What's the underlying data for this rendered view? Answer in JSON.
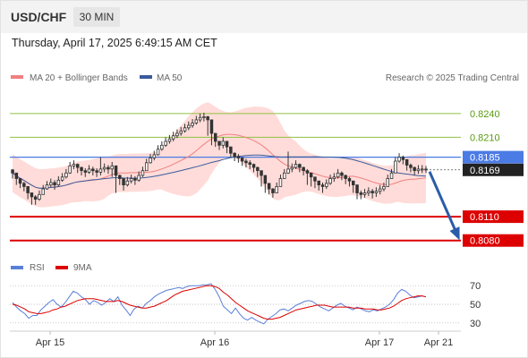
{
  "header": {
    "symbol": "USD/CHF",
    "timeframe": "30 MIN"
  },
  "datetime": "Thursday, April 17, 2025 6:49:15 AM CET",
  "legend": {
    "ma20": "MA 20 + Bollinger Bands",
    "ma50": "MA 50",
    "copyright": "Research © 2025 Trading Central"
  },
  "rsi_legend": {
    "rsi": "RSI",
    "ma9": "9MA"
  },
  "colors": {
    "up_candle": "#ffffff",
    "down_candle": "#333333",
    "ma20": "#f08080",
    "ma50": "#3a5a9c",
    "band": "#ffd0cc",
    "resistance": "#90c040",
    "pivot": "#4b7be5",
    "support": "#dd0000",
    "forecast": "#2a5caa",
    "rsi": "#5a7fd8",
    "rsi_ma": "#dd0000"
  },
  "chart_data": [
    {
      "type": "candlestick",
      "x_tick_labels": [
        "Apr 15",
        "Apr 16",
        "Apr 17",
        "Apr 21"
      ],
      "ylim": [
        0.8065,
        0.8268
      ],
      "levels": [
        {
          "label": "0.8240",
          "value": 0.824,
          "kind": "resistance"
        },
        {
          "label": "0.8210",
          "value": 0.821,
          "kind": "resistance"
        },
        {
          "label": "0.8185",
          "value": 0.8185,
          "kind": "pivot"
        },
        {
          "label": "0.8110",
          "value": 0.811,
          "kind": "support"
        },
        {
          "label": "0.8080",
          "value": 0.808,
          "kind": "support"
        }
      ],
      "last_price": {
        "label": "0.8169",
        "value": 0.8169
      },
      "forecast": {
        "from": 0.8169,
        "to": 0.808
      },
      "close": [
        0.8165,
        0.8158,
        0.8152,
        0.8148,
        0.814,
        0.8135,
        0.8132,
        0.8138,
        0.8145,
        0.815,
        0.8153,
        0.815,
        0.8156,
        0.816,
        0.8165,
        0.8174,
        0.8176,
        0.8172,
        0.8168,
        0.8166,
        0.817,
        0.8168,
        0.8166,
        0.817,
        0.8172,
        0.817,
        0.8174,
        0.8162,
        0.8158,
        0.815,
        0.8155,
        0.8158,
        0.8156,
        0.8162,
        0.8168,
        0.8178,
        0.8184,
        0.8188,
        0.8195,
        0.82,
        0.8205,
        0.8208,
        0.8212,
        0.8215,
        0.8218,
        0.8222,
        0.8225,
        0.8228,
        0.8232,
        0.8235,
        0.8236,
        0.8232,
        0.8215,
        0.8205,
        0.82,
        0.8205,
        0.8198,
        0.819,
        0.8186,
        0.8184,
        0.818,
        0.8178,
        0.8176,
        0.8172,
        0.8168,
        0.8162,
        0.8152,
        0.8145,
        0.814,
        0.8148,
        0.8158,
        0.8165,
        0.817,
        0.8172,
        0.8176,
        0.8172,
        0.8168,
        0.8165,
        0.816,
        0.8155,
        0.815,
        0.8148,
        0.8152,
        0.8158,
        0.816,
        0.8165,
        0.8162,
        0.8158,
        0.8155,
        0.815,
        0.814,
        0.8138,
        0.814,
        0.8142,
        0.814,
        0.8142,
        0.8145,
        0.8148,
        0.8158,
        0.8165,
        0.818,
        0.8185,
        0.8182,
        0.8175,
        0.8172,
        0.8168,
        0.817,
        0.817,
        0.8169
      ],
      "high": [
        0.817,
        0.8163,
        0.8157,
        0.8154,
        0.8146,
        0.814,
        0.8137,
        0.8143,
        0.815,
        0.8155,
        0.8158,
        0.8156,
        0.8161,
        0.8165,
        0.817,
        0.8179,
        0.8181,
        0.8177,
        0.8173,
        0.8171,
        0.8175,
        0.8173,
        0.8171,
        0.8185,
        0.8177,
        0.8175,
        0.8179,
        0.8174,
        0.8163,
        0.8155,
        0.816,
        0.8163,
        0.8161,
        0.8167,
        0.8173,
        0.8183,
        0.8189,
        0.8193,
        0.82,
        0.8205,
        0.821,
        0.8213,
        0.8217,
        0.822,
        0.8223,
        0.8227,
        0.823,
        0.8233,
        0.8237,
        0.824,
        0.8241,
        0.8237,
        0.8232,
        0.8215,
        0.8205,
        0.821,
        0.8205,
        0.8198,
        0.8191,
        0.8189,
        0.8185,
        0.8183,
        0.8181,
        0.8177,
        0.8173,
        0.8168,
        0.8162,
        0.815,
        0.8146,
        0.8153,
        0.8163,
        0.817,
        0.8192,
        0.8177,
        0.8181,
        0.8177,
        0.8173,
        0.817,
        0.8165,
        0.816,
        0.8155,
        0.8153,
        0.8157,
        0.8163,
        0.8165,
        0.817,
        0.8167,
        0.8163,
        0.816,
        0.8155,
        0.815,
        0.8143,
        0.8145,
        0.8147,
        0.8145,
        0.8147,
        0.815,
        0.8153,
        0.8163,
        0.817,
        0.8185,
        0.819,
        0.8187,
        0.8182,
        0.8177,
        0.8173,
        0.8175,
        0.8175,
        0.8174
      ],
      "low": [
        0.8158,
        0.815,
        0.8146,
        0.8142,
        0.8132,
        0.8125,
        0.8125,
        0.813,
        0.8138,
        0.8144,
        0.8147,
        0.8144,
        0.8148,
        0.8154,
        0.8158,
        0.8164,
        0.817,
        0.8165,
        0.8162,
        0.816,
        0.8164,
        0.8162,
        0.816,
        0.8162,
        0.8166,
        0.8164,
        0.816,
        0.814,
        0.815,
        0.8143,
        0.8148,
        0.8152,
        0.815,
        0.8154,
        0.816,
        0.817,
        0.8177,
        0.8181,
        0.8187,
        0.8193,
        0.8198,
        0.8202,
        0.8205,
        0.8209,
        0.8212,
        0.8216,
        0.8219,
        0.8222,
        0.8226,
        0.8229,
        0.823,
        0.8212,
        0.82,
        0.8198,
        0.8194,
        0.8196,
        0.819,
        0.8184,
        0.818,
        0.8178,
        0.8174,
        0.8172,
        0.817,
        0.8166,
        0.816,
        0.8148,
        0.814,
        0.8138,
        0.8134,
        0.814,
        0.815,
        0.8158,
        0.8164,
        0.8166,
        0.817,
        0.8166,
        0.8162,
        0.815,
        0.8148,
        0.8146,
        0.8143,
        0.814,
        0.8145,
        0.815,
        0.8154,
        0.8158,
        0.8156,
        0.8151,
        0.8148,
        0.814,
        0.8132,
        0.8132,
        0.8134,
        0.8136,
        0.8133,
        0.8135,
        0.8138,
        0.8142,
        0.815,
        0.8158,
        0.817,
        0.8178,
        0.8176,
        0.8168,
        0.8166,
        0.8162,
        0.8164,
        0.8165,
        0.8165
      ]
    },
    {
      "type": "line",
      "title": "RSI",
      "ylim": [
        25,
        75
      ],
      "y_ticks": [
        70,
        50,
        30
      ],
      "series": [
        {
          "name": "RSI",
          "values": [
            52,
            47,
            43,
            40,
            35,
            38,
            38,
            44,
            48,
            52,
            55,
            50,
            47,
            52,
            58,
            64,
            62,
            58,
            55,
            50,
            54,
            52,
            49,
            52,
            56,
            53,
            58,
            49,
            44,
            38,
            45,
            48,
            46,
            51,
            54,
            58,
            61,
            63,
            65,
            66,
            67,
            68,
            67,
            69,
            70,
            70,
            70,
            71,
            71,
            72,
            66,
            58,
            48,
            44,
            40,
            46,
            40,
            35,
            33,
            36,
            33,
            31,
            29,
            34,
            37,
            40,
            44,
            45,
            43,
            46,
            49,
            51,
            53,
            54,
            53,
            50,
            47,
            45,
            43,
            46,
            49,
            51,
            48,
            46,
            44,
            47,
            45,
            43,
            42,
            44,
            43,
            45,
            47,
            50,
            55,
            62,
            66,
            64,
            60,
            57,
            58,
            59,
            58
          ]
        },
        {
          "name": "9MA",
          "values": [
            50,
            49,
            47,
            45,
            42,
            41,
            40,
            40,
            41,
            42,
            44,
            45,
            47,
            48,
            50,
            52,
            54,
            55,
            56,
            56,
            56,
            55,
            54,
            53,
            53,
            53,
            54,
            53,
            51,
            49,
            48,
            47,
            46,
            46,
            47,
            48,
            50,
            52,
            54,
            57,
            60,
            62,
            64,
            65,
            66,
            67,
            68,
            69,
            70,
            70,
            69,
            67,
            63,
            60,
            56,
            52,
            49,
            46,
            43,
            41,
            39,
            37,
            35,
            34,
            34,
            35,
            36,
            38,
            40,
            42,
            44,
            45,
            46,
            47,
            48,
            49,
            49,
            49,
            48,
            47,
            47,
            47,
            47,
            47,
            46,
            46,
            46,
            45,
            45,
            45,
            44,
            44,
            45,
            46,
            48,
            51,
            54,
            56,
            57,
            58,
            59,
            59,
            58
          ]
        }
      ]
    }
  ]
}
